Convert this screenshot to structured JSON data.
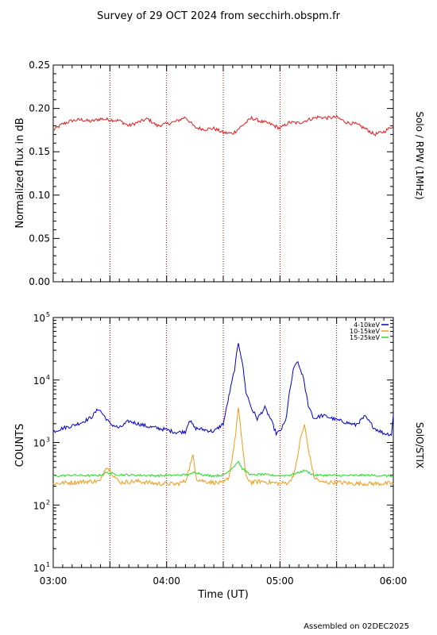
{
  "title": "Survey of 29 OCT 2024 from secchirh.obspm.fr",
  "footer": "Assembled on 02DEC2025",
  "colors": {
    "rpw": "#e41a1c",
    "low": "#0000cc",
    "mid": "#f29a1a",
    "high": "#22dd22",
    "dotted": "#8b0000"
  },
  "chart_data": [
    {
      "type": "line",
      "ylabel": "Normalized flux in dB",
      "right_label": "Solo / RPW (1MHz)",
      "ylim": [
        0,
        0.25
      ],
      "yticks": [
        0.0,
        0.05,
        0.1,
        0.15,
        0.2,
        0.25
      ],
      "ytick_labels": [
        "0.00",
        "0.05",
        "0.10",
        "0.15",
        "0.20",
        "0.25"
      ],
      "xlim": [
        "03:00",
        "06:00"
      ],
      "grid": "dotted vertical lines every 30 minutes",
      "series": [
        {
          "x": [
            "03:00",
            "03:05",
            "03:10",
            "03:15",
            "03:20",
            "03:25",
            "03:30",
            "03:35",
            "03:40",
            "03:45",
            "03:50",
            "03:55",
            "04:00",
            "04:05",
            "04:10",
            "04:15",
            "04:20",
            "04:25",
            "04:30",
            "04:35",
            "04:40",
            "04:45",
            "04:50",
            "04:55",
            "05:00",
            "05:05",
            "05:10",
            "05:15",
            "05:20",
            "05:25",
            "05:30",
            "05:35",
            "05:40",
            "05:45",
            "05:50",
            "05:55",
            "06:00"
          ],
          "y": [
            0.175,
            0.182,
            0.186,
            0.187,
            0.185,
            0.188,
            0.187,
            0.186,
            0.18,
            0.184,
            0.188,
            0.18,
            0.182,
            0.185,
            0.19,
            0.178,
            0.176,
            0.177,
            0.172,
            0.171,
            0.18,
            0.189,
            0.185,
            0.182,
            0.177,
            0.184,
            0.183,
            0.187,
            0.19,
            0.189,
            0.19,
            0.184,
            0.182,
            0.177,
            0.17,
            0.173,
            0.18
          ]
        }
      ]
    },
    {
      "type": "line",
      "ylabel": "COUNTS",
      "right_label": "SolO/STIX",
      "yscale": "log",
      "ylim": [
        10,
        100000
      ],
      "ytick_labels": [
        {
          "base": "10",
          "exp": "1"
        },
        {
          "base": "10",
          "exp": "2"
        },
        {
          "base": "10",
          "exp": "3"
        },
        {
          "base": "10",
          "exp": "4"
        },
        {
          "base": "10",
          "exp": "5"
        }
      ],
      "xlabel": "Time (UT)",
      "xlim": [
        "03:00",
        "06:00"
      ],
      "xtick_labels": [
        "03:00",
        "04:00",
        "05:00",
        "06:00"
      ],
      "grid": "dotted vertical lines every 30 minutes",
      "legend_position": "top-right",
      "series": [
        {
          "name": "4-10keV",
          "x": [
            "03:00",
            "03:05",
            "03:10",
            "03:15",
            "03:20",
            "03:24",
            "03:30",
            "03:35",
            "03:40",
            "03:45",
            "03:50",
            "03:55",
            "04:00",
            "04:05",
            "04:10",
            "04:12",
            "04:15",
            "04:20",
            "04:25",
            "04:30",
            "04:33",
            "04:36",
            "04:38",
            "04:40",
            "04:42",
            "04:45",
            "04:48",
            "04:52",
            "04:55",
            "04:58",
            "05:00",
            "05:03",
            "05:05",
            "05:07",
            "05:09",
            "05:12",
            "05:15",
            "05:18",
            "05:22",
            "05:25",
            "05:30",
            "05:35",
            "05:40",
            "05:45",
            "05:50",
            "05:55",
            "05:59",
            "06:00"
          ],
          "y": [
            1500,
            1700,
            1850,
            2100,
            2500,
            3500,
            2000,
            1700,
            2200,
            2000,
            1800,
            1700,
            1600,
            1450,
            1500,
            2300,
            1700,
            1600,
            1500,
            2000,
            5500,
            15000,
            40000,
            20000,
            6500,
            3500,
            2400,
            3600,
            2400,
            1400,
            1500,
            2200,
            6000,
            14000,
            20000,
            12000,
            4000,
            2400,
            2700,
            2600,
            2300,
            2100,
            1900,
            2600,
            1700,
            1400,
            1350,
            2700
          ]
        },
        {
          "name": "10-15keV",
          "x": [
            "03:00",
            "03:10",
            "03:20",
            "03:25",
            "03:28",
            "03:35",
            "03:45",
            "03:55",
            "04:00",
            "04:05",
            "04:10",
            "04:14",
            "04:16",
            "04:20",
            "04:25",
            "04:30",
            "04:33",
            "04:36",
            "04:38",
            "04:40",
            "04:42",
            "04:45",
            "04:50",
            "04:55",
            "05:00",
            "05:05",
            "05:08",
            "05:11",
            "05:13",
            "05:15",
            "05:18",
            "05:22",
            "05:30",
            "05:40",
            "05:50",
            "06:00"
          ],
          "y": [
            220,
            230,
            240,
            240,
            420,
            230,
            240,
            220,
            220,
            215,
            240,
            620,
            260,
            240,
            230,
            220,
            280,
            1000,
            3500,
            1000,
            280,
            230,
            240,
            230,
            220,
            230,
            350,
            1200,
            1900,
            800,
            280,
            230,
            230,
            220,
            220,
            220
          ]
        },
        {
          "name": "15-25keV",
          "x": [
            "03:00",
            "03:10",
            "03:20",
            "03:25",
            "03:28",
            "03:35",
            "03:45",
            "03:55",
            "04:05",
            "04:13",
            "04:15",
            "04:20",
            "04:25",
            "04:30",
            "04:33",
            "04:36",
            "04:38",
            "04:40",
            "04:45",
            "04:50",
            "04:55",
            "05:00",
            "05:05",
            "05:10",
            "05:13",
            "05:18",
            "05:25",
            "05:35",
            "05:45",
            "05:55",
            "06:00"
          ],
          "y": [
            290,
            300,
            295,
            300,
            330,
            305,
            300,
            295,
            300,
            310,
            340,
            300,
            295,
            300,
            350,
            430,
            500,
            380,
            300,
            310,
            300,
            295,
            300,
            330,
            360,
            300,
            300,
            295,
            300,
            295,
            290
          ]
        }
      ]
    }
  ]
}
